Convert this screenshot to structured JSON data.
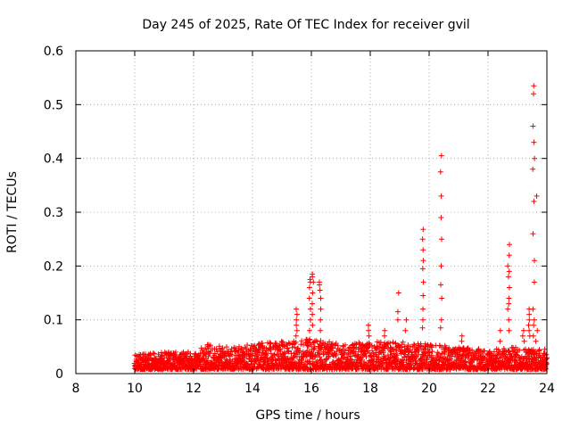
{
  "chart_data": {
    "type": "scatter",
    "title": "Day 245 of 2025, Rate Of TEC Index for receiver gvil",
    "xlabel": "GPS time / hours",
    "ylabel": "ROTI / TECUs",
    "xlim": [
      8,
      24
    ],
    "ylim": [
      0,
      0.6
    ],
    "xticks": [
      8,
      10,
      12,
      14,
      16,
      18,
      20,
      22,
      24
    ],
    "yticks": [
      0,
      0.1,
      0.2,
      0.3,
      0.4,
      0.5,
      0.6
    ],
    "xtick_labels": [
      "8",
      "10",
      "12",
      "14",
      "16",
      "18",
      "20",
      "22",
      "24"
    ],
    "ytick_labels": [
      "0",
      "0.1",
      "0.2",
      "0.3",
      "0.4",
      "0.5",
      "0.6"
    ],
    "grid": true,
    "marker": "+",
    "color": "#ff0000",
    "series": [
      {
        "name": "ROTI",
        "baseline": {
          "x_range": [
            10,
            24
          ],
          "typical_y": 0.02,
          "envelope": [
            [
              10,
              0.035
            ],
            [
              11,
              0.04
            ],
            [
              12,
              0.04
            ],
            [
              12.5,
              0.055
            ],
            [
              13,
              0.05
            ],
            [
              14,
              0.055
            ],
            [
              15,
              0.06
            ],
            [
              16,
              0.065
            ],
            [
              17,
              0.055
            ],
            [
              18,
              0.06
            ],
            [
              19,
              0.06
            ],
            [
              20,
              0.055
            ],
            [
              21,
              0.05
            ],
            [
              22,
              0.045
            ],
            [
              23,
              0.05
            ],
            [
              24,
              0.045
            ]
          ]
        },
        "peaks": [
          {
            "x": 15.5,
            "values": [
              0.07,
              0.08,
              0.09,
              0.1,
              0.11,
              0.12
            ]
          },
          {
            "x": 15.95,
            "values": [
              0.08,
              0.1,
              0.12,
              0.14,
              0.16,
              0.17,
              0.175
            ]
          },
          {
            "x": 16.05,
            "values": [
              0.09,
              0.11,
              0.13,
              0.15,
              0.17,
              0.18,
              0.185
            ]
          },
          {
            "x": 16.3,
            "values": [
              0.08,
              0.1,
              0.12,
              0.14,
              0.155,
              0.165,
              0.17
            ]
          },
          {
            "x": 17.95,
            "values": [
              0.07,
              0.08,
              0.09
            ]
          },
          {
            "x": 18.5,
            "values": [
              0.07,
              0.08
            ]
          },
          {
            "x": 18.95,
            "values": [
              0.1,
              0.115,
              0.15
            ]
          },
          {
            "x": 19.2,
            "values": [
              0.08,
              0.1
            ]
          },
          {
            "x": 19.8,
            "values": [
              0.085,
              0.1,
              0.12,
              0.145,
              0.17,
              0.195,
              0.21,
              0.23,
              0.25,
              0.268
            ]
          },
          {
            "x": 20.4,
            "values": [
              0.085,
              0.1,
              0.14,
              0.165,
              0.2,
              0.25,
              0.29,
              0.33,
              0.375,
              0.405
            ]
          },
          {
            "x": 21.1,
            "values": [
              0.06,
              0.07
            ]
          },
          {
            "x": 22.4,
            "values": [
              0.06,
              0.08
            ]
          },
          {
            "x": 22.7,
            "values": [
              0.08,
              0.1,
              0.12,
              0.13,
              0.14,
              0.16,
              0.18,
              0.19,
              0.2,
              0.22,
              0.24
            ]
          },
          {
            "x": 23.2,
            "values": [
              0.06,
              0.07,
              0.08
            ]
          },
          {
            "x": 23.4,
            "values": [
              0.07,
              0.08,
              0.09,
              0.1,
              0.11,
              0.12
            ]
          },
          {
            "x": 23.55,
            "values": [
              0.07,
              0.09,
              0.1,
              0.12,
              0.17,
              0.21,
              0.26,
              0.32,
              0.38,
              0.4,
              0.43,
              0.46,
              0.52,
              0.535
            ]
          },
          {
            "x": 23.65,
            "values": [
              0.06,
              0.08,
              0.33
            ]
          }
        ]
      }
    ]
  }
}
